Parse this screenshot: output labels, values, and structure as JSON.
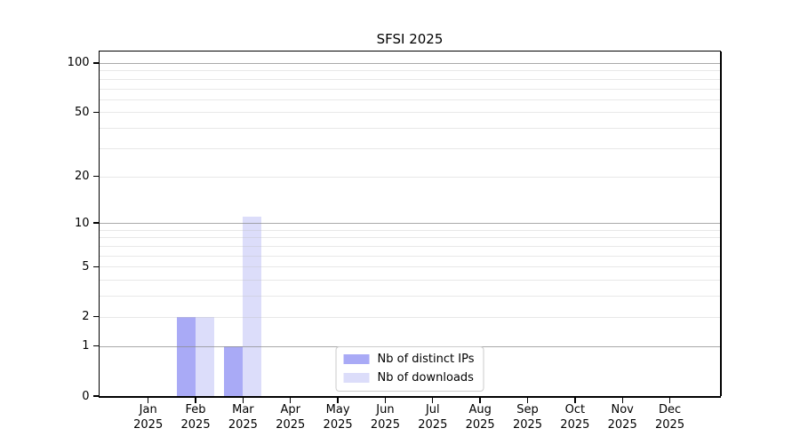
{
  "chart_data": {
    "type": "bar",
    "title": "SFSI 2025",
    "xlabel": "",
    "ylabel": "",
    "categories": [
      {
        "month": "Jan",
        "year": "2025"
      },
      {
        "month": "Feb",
        "year": "2025"
      },
      {
        "month": "Mar",
        "year": "2025"
      },
      {
        "month": "Apr",
        "year": "2025"
      },
      {
        "month": "May",
        "year": "2025"
      },
      {
        "month": "Jun",
        "year": "2025"
      },
      {
        "month": "Jul",
        "year": "2025"
      },
      {
        "month": "Aug",
        "year": "2025"
      },
      {
        "month": "Sep",
        "year": "2025"
      },
      {
        "month": "Oct",
        "year": "2025"
      },
      {
        "month": "Nov",
        "year": "2025"
      },
      {
        "month": "Dec",
        "year": "2025"
      }
    ],
    "series": [
      {
        "name": "Nb of distinct IPs",
        "color": "#a9aaf6",
        "values": [
          0,
          2,
          1,
          0,
          0,
          0,
          0,
          0,
          0,
          0,
          0,
          0
        ]
      },
      {
        "name": "Nb of downloads",
        "color": "#dcddfa",
        "values": [
          0,
          2,
          11,
          0,
          0,
          0,
          0,
          0,
          0,
          0,
          0,
          0
        ]
      }
    ],
    "yscale": "log1p",
    "ylim": [
      0,
      117.3
    ],
    "yticks": [
      0,
      1,
      2,
      5,
      10,
      20,
      50,
      100
    ],
    "grid": {
      "on": "both",
      "major": [
        1,
        10,
        100
      ],
      "minor": [
        2,
        3,
        4,
        5,
        6,
        7,
        8,
        9,
        20,
        30,
        40,
        50,
        60,
        70,
        80,
        90
      ]
    },
    "legend": {
      "position": "lower center"
    },
    "colors": {
      "grid_major": "#b0b0b0",
      "grid_minor": "#e9e9e9",
      "spine": "#000000",
      "text": "#000000"
    }
  }
}
